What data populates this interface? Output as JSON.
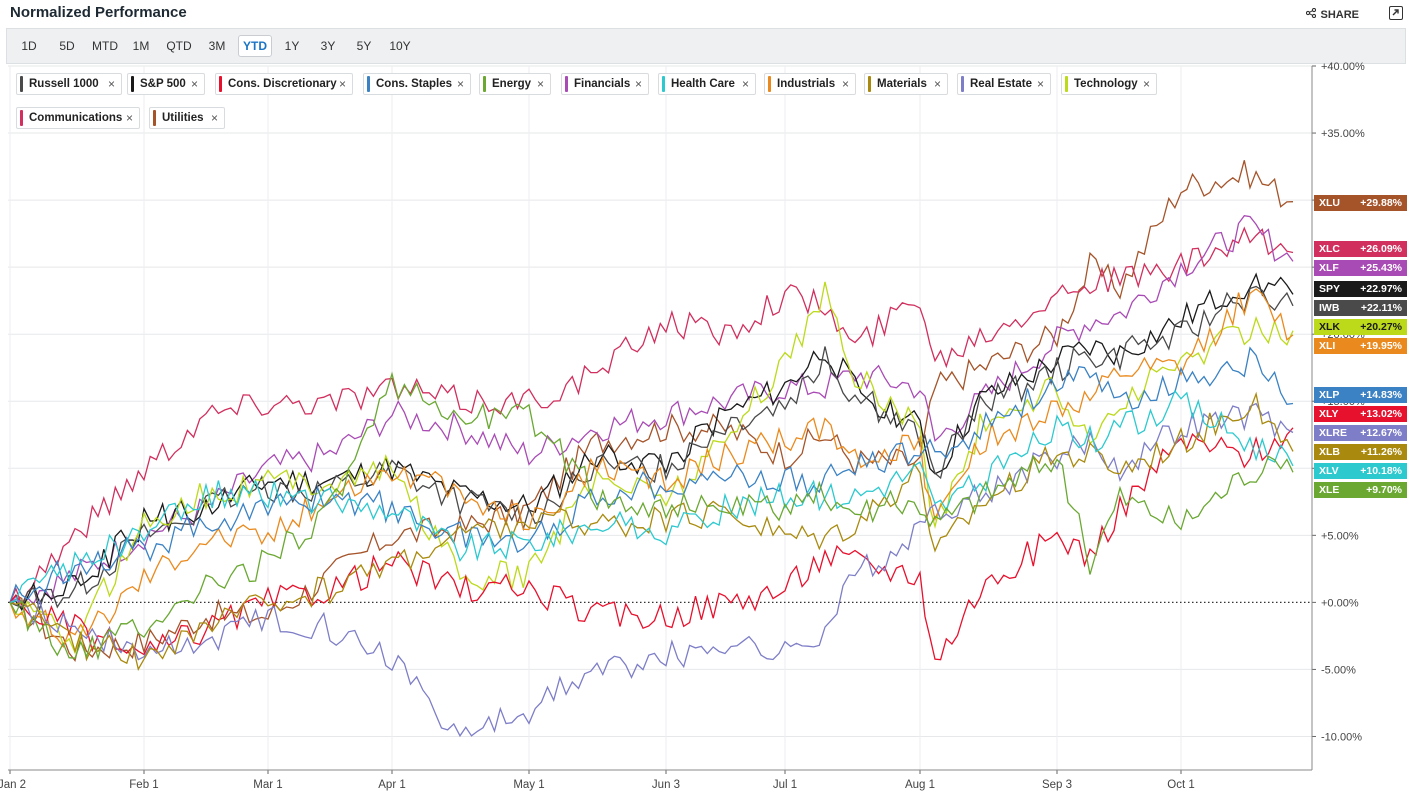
{
  "header": {
    "title": "Normalized Performance",
    "share_label": "SHARE"
  },
  "ranges": [
    "1D",
    "5D",
    "MTD",
    "1M",
    "QTD",
    "3M",
    "YTD",
    "1Y",
    "3Y",
    "5Y",
    "10Y"
  ],
  "active_range": "YTD",
  "legend": [
    {
      "name": "Russell 1000",
      "color": "#4a4a4a"
    },
    {
      "name": "S&P 500",
      "color": "#1a1a1a"
    },
    {
      "name": "Cons. Discretionary",
      "color": "#e8112d"
    },
    {
      "name": "Cons. Staples",
      "color": "#3a82c4"
    },
    {
      "name": "Energy",
      "color": "#6aa832"
    },
    {
      "name": "Financials",
      "color": "#a94bb5"
    },
    {
      "name": "Health Care",
      "color": "#2cc9cf"
    },
    {
      "name": "Industrials",
      "color": "#ea8a1e"
    },
    {
      "name": "Materials",
      "color": "#a98a0e"
    },
    {
      "name": "Real Estate",
      "color": "#7e7ec8"
    },
    {
      "name": "Technology",
      "color": "#bcd91a"
    },
    {
      "name": "Communications",
      "color": "#d12f5e"
    },
    {
      "name": "Utilities",
      "color": "#a5542a"
    }
  ],
  "badges": [
    {
      "ticker": "XLU",
      "value": "+29.88%",
      "color": "#a5542a"
    },
    {
      "ticker": "XLC",
      "value": "+26.09%",
      "color": "#d12f5e"
    },
    {
      "ticker": "XLF",
      "value": "+25.43%",
      "color": "#a94bb5"
    },
    {
      "ticker": "SPY",
      "value": "+22.97%",
      "color": "#1a1a1a"
    },
    {
      "ticker": "IWB",
      "value": "+22.11%",
      "color": "#4a4a4a"
    },
    {
      "ticker": "XLK",
      "value": "+20.27%",
      "color": "#bcd91a"
    },
    {
      "ticker": "XLI",
      "value": "+19.95%",
      "color": "#ea8a1e"
    },
    {
      "ticker": "XLP",
      "value": "+14.83%",
      "color": "#3a82c4"
    },
    {
      "ticker": "XLY",
      "value": "+13.02%",
      "color": "#e8112d"
    },
    {
      "ticker": "XLRE",
      "value": "+12.67%",
      "color": "#7e7ec8"
    },
    {
      "ticker": "XLB",
      "value": "+11.26%",
      "color": "#a98a0e"
    },
    {
      "ticker": "XLV",
      "value": "+10.18%",
      "color": "#2cc9cf"
    },
    {
      "ticker": "XLE",
      "value": "+9.70%",
      "color": "#6aa832"
    }
  ],
  "chart_data": {
    "type": "line",
    "title": "Normalized Performance",
    "x_ticks": [
      "Jan 2",
      "Feb 1",
      "Mar 1",
      "Apr 1",
      "May 1",
      "Jun 3",
      "Jul 1",
      "Aug 1",
      "Sep 3",
      "Oct 1"
    ],
    "y_ticks": [
      "+40.00%",
      "+35.00%",
      "+30.00%",
      "+25.00%",
      "+20.00%",
      "+15.00%",
      "+10.00%",
      "+5.00%",
      "+0.00%",
      "-5.00%",
      "-10.00%"
    ],
    "ylim": [
      -12.5,
      40
    ],
    "x": [
      "Jan 2",
      "Jan 16",
      "Feb 1",
      "Feb 15",
      "Mar 1",
      "Mar 15",
      "Apr 1",
      "Apr 15",
      "May 1",
      "May 15",
      "Jun 3",
      "Jun 17",
      "Jul 1",
      "Jul 10",
      "Jul 17",
      "Aug 1",
      "Aug 5",
      "Aug 15",
      "Sep 3",
      "Sep 10",
      "Sep 18",
      "Oct 1",
      "Oct 15",
      "Oct 31"
    ],
    "series": [
      {
        "name": "Utilities",
        "ticker": "XLU",
        "values": [
          0,
          -3.5,
          -3,
          -1,
          -1,
          2,
          5,
          5.5,
          7,
          12,
          13,
          13,
          11,
          12.5,
          10.5,
          10.5,
          16,
          17.5,
          20,
          25,
          23.5,
          31,
          32,
          29.88
        ]
      },
      {
        "name": "Communications",
        "ticker": "XLC",
        "values": [
          0,
          5,
          10,
          14,
          15,
          15,
          16,
          15,
          15,
          17,
          21,
          20,
          23,
          22,
          19,
          23,
          18,
          20,
          23,
          24,
          24,
          25,
          27,
          26.09
        ]
      },
      {
        "name": "Financials",
        "ticker": "XLF",
        "values": [
          0,
          2,
          5,
          7,
          10,
          11,
          14,
          13,
          11,
          13,
          14,
          15,
          16,
          16,
          17,
          16,
          12,
          15,
          19.5,
          21,
          21.5,
          25,
          28,
          25.43
        ]
      },
      {
        "name": "S&P 500",
        "ticker": "SPY",
        "values": [
          0,
          1,
          6,
          7,
          9,
          9,
          10,
          8,
          7,
          11,
          10.5,
          14,
          16,
          19,
          16,
          13,
          9.5,
          15,
          18,
          19,
          18.5,
          21,
          24,
          22.97
        ]
      },
      {
        "name": "Russell 1000",
        "ticker": "IWB",
        "values": [
          0,
          1,
          5,
          7,
          8.5,
          8.5,
          10,
          7.5,
          6.5,
          10,
          10,
          13.5,
          15,
          18,
          15.5,
          12.5,
          9.5,
          14.5,
          17.5,
          18.5,
          18.5,
          20,
          23,
          22.11
        ]
      },
      {
        "name": "Technology",
        "ticker": "XLK",
        "values": [
          0,
          -3,
          6,
          8,
          9,
          9,
          10,
          2,
          2,
          9.5,
          8,
          12,
          18,
          23,
          17,
          13,
          5.5,
          13,
          16,
          12,
          15,
          18,
          20.5,
          20.27
        ]
      },
      {
        "name": "Industrials",
        "ticker": "XLI",
        "values": [
          0,
          -3,
          2,
          5,
          5,
          8,
          10,
          8,
          6,
          10,
          9,
          11,
          12,
          13,
          11,
          11.5,
          6,
          12,
          14.5,
          15,
          17,
          17.5,
          23,
          19.95
        ]
      },
      {
        "name": "Cons. Staples",
        "ticker": "XLP",
        "values": [
          0,
          3,
          4,
          6,
          7,
          8,
          7,
          5,
          4.5,
          8,
          9,
          9.5,
          9,
          9,
          10,
          11.5,
          11,
          13,
          16.5,
          16.5,
          15,
          16.5,
          18,
          14.83
        ]
      },
      {
        "name": "Cons. Discretionary",
        "ticker": "XLY",
        "values": [
          0,
          -2,
          -4,
          -2,
          0,
          1,
          3,
          1,
          1,
          -1,
          -1,
          0,
          1,
          3.5,
          3,
          2,
          -4.5,
          1,
          5,
          3.5,
          7,
          12,
          11,
          13.02
        ]
      },
      {
        "name": "Real Estate",
        "ticker": "XLRE",
        "values": [
          0,
          -2,
          -4,
          -3,
          -1,
          -2,
          -4,
          -10,
          -8,
          -5,
          -4,
          -3,
          -4,
          -2,
          2,
          5,
          7,
          8,
          11,
          12,
          10,
          13,
          14,
          12.67
        ]
      },
      {
        "name": "Materials",
        "ticker": "XLB",
        "values": [
          0,
          -3,
          -4,
          -2,
          0,
          1,
          3,
          5,
          6,
          6,
          6,
          7,
          5,
          5,
          6,
          10,
          3.5,
          7.5,
          11,
          11,
          10,
          12,
          15,
          11.26
        ]
      },
      {
        "name": "Health Care",
        "ticker": "XLV",
        "values": [
          0,
          3,
          5,
          8,
          8,
          7.5,
          7,
          4,
          4.5,
          6,
          5,
          7,
          8,
          8,
          8,
          10,
          7,
          9,
          13,
          12,
          13,
          15,
          12,
          10.18
        ]
      },
      {
        "name": "Energy",
        "ticker": "XLE",
        "values": [
          0,
          -4,
          -2,
          1,
          3,
          7,
          16,
          14,
          14,
          8,
          7,
          7,
          7,
          8,
          7,
          7.5,
          6,
          8,
          11,
          3,
          8,
          6,
          10,
          9.7
        ]
      }
    ]
  }
}
